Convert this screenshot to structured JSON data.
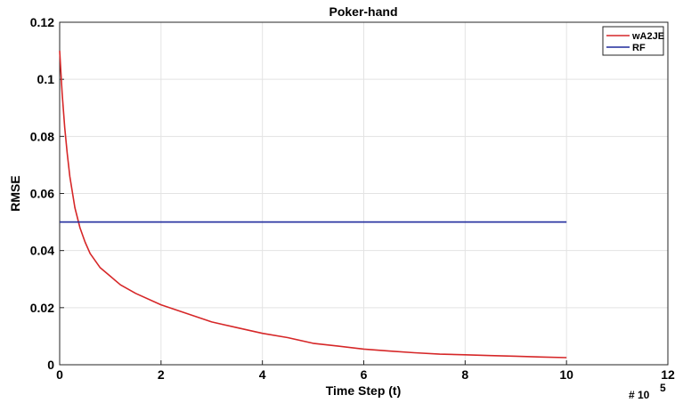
{
  "chart_data": {
    "type": "line",
    "title": "Poker-hand",
    "xlabel": "Time Step (t)",
    "ylabel": "RMSE",
    "x_multiplier": "# 10",
    "x_multiplier_exp": "5",
    "xlim": [
      0,
      12
    ],
    "ylim": [
      0,
      0.12
    ],
    "x_ticks": [
      0,
      2,
      4,
      6,
      8,
      10,
      12
    ],
    "y_ticks": [
      0,
      0.02,
      0.04,
      0.06,
      0.08,
      0.1,
      0.12
    ],
    "x_tick_labels": [
      "0",
      "2",
      "4",
      "6",
      "8",
      "10",
      "12"
    ],
    "y_tick_labels": [
      "0",
      "0.02",
      "0.04",
      "0.06",
      "0.08",
      "0.1",
      "0.12"
    ],
    "grid": true,
    "legend": "top-right",
    "series": [
      {
        "name": "wA2JE",
        "color": "#d62728",
        "x": [
          0.0,
          0.02,
          0.05,
          0.1,
          0.15,
          0.2,
          0.3,
          0.4,
          0.5,
          0.6,
          0.8,
          1.0,
          1.2,
          1.5,
          2.0,
          2.5,
          3.0,
          3.5,
          4.0,
          4.5,
          5.0,
          5.5,
          6.0,
          6.5,
          7.0,
          7.5,
          8.0,
          8.5,
          9.0,
          9.5,
          10.0
        ],
        "y": [
          0.11,
          0.104,
          0.095,
          0.083,
          0.074,
          0.066,
          0.055,
          0.048,
          0.043,
          0.039,
          0.034,
          0.031,
          0.028,
          0.025,
          0.021,
          0.018,
          0.015,
          0.013,
          0.011,
          0.0095,
          0.0075,
          0.0065,
          0.0055,
          0.0048,
          0.0042,
          0.0037,
          0.0035,
          0.0032,
          0.003,
          0.0027,
          0.0025
        ]
      },
      {
        "name": "RF",
        "color": "#1f2a9c",
        "x": [
          0,
          10
        ],
        "y": [
          0.05,
          0.05
        ]
      }
    ]
  }
}
